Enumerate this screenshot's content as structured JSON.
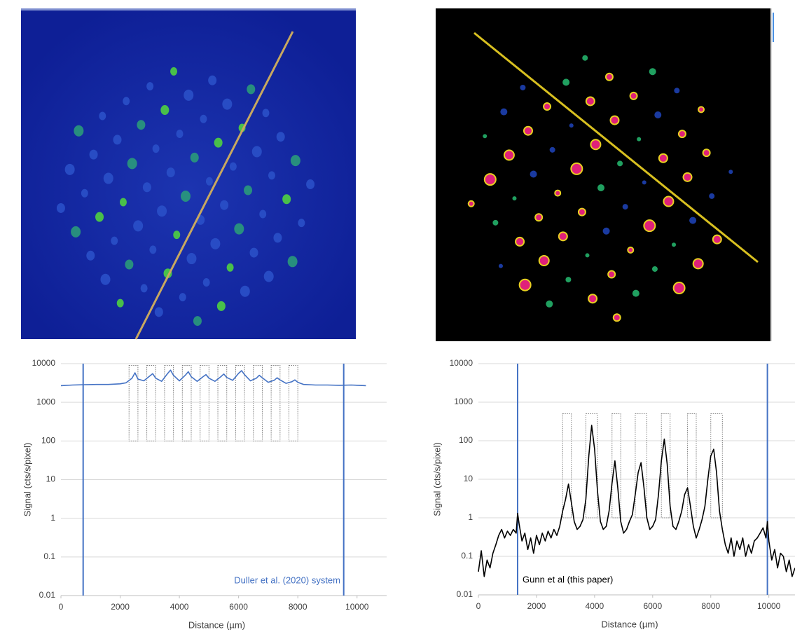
{
  "chart_data": [
    {
      "type": "line",
      "log_y": true,
      "grid": true,
      "xlabel": "Distance (µm)",
      "ylabel": "Signal (cts/s/pixel)",
      "annotation": "Duller et al. (2020) system",
      "annotation_color": "#4472c4",
      "xlim": [
        0,
        11000
      ],
      "ylim": [
        0.01,
        10000
      ],
      "xticks": [
        0,
        2000,
        4000,
        6000,
        8000,
        10000
      ],
      "yticks": [
        10000,
        1000,
        100,
        10,
        1,
        0.1,
        0.01
      ],
      "x": [
        0,
        400,
        800,
        1200,
        1600,
        2000,
        2200,
        2400,
        2500,
        2600,
        2800,
        3000,
        3100,
        3200,
        3400,
        3600,
        3700,
        3800,
        4000,
        4200,
        4300,
        4400,
        4600,
        4800,
        4900,
        5000,
        5200,
        5400,
        5500,
        5600,
        5800,
        6000,
        6100,
        6200,
        6400,
        6600,
        6700,
        6800,
        7000,
        7200,
        7300,
        7400,
        7600,
        7800,
        7900,
        8000,
        8200,
        8600,
        9000,
        9400,
        9800,
        10300
      ],
      "series": [
        {
          "color": "#4472c4",
          "values": [
            2700,
            2800,
            2850,
            2900,
            2900,
            3000,
            3200,
            4200,
            5800,
            4000,
            3600,
            4800,
            5500,
            4200,
            3500,
            5500,
            6800,
            5000,
            3600,
            5000,
            6200,
            4600,
            3500,
            4600,
            5200,
            4200,
            3500,
            4600,
            5400,
            4400,
            3700,
            5600,
            6600,
            5200,
            3600,
            4200,
            5000,
            4300,
            3300,
            3700,
            4300,
            3800,
            3100,
            3400,
            3800,
            3300,
            2900,
            2800,
            2800,
            2750,
            2800,
            2700
          ]
        }
      ],
      "vlines": {
        "color": "#4472c4",
        "x": [
          750,
          9550
        ]
      },
      "boxes": [
        {
          "x0": 2300,
          "x1": 2600,
          "y0": 100,
          "y1": 9000
        },
        {
          "x0": 2900,
          "x1": 3200,
          "y0": 100,
          "y1": 9000
        },
        {
          "x0": 3500,
          "x1": 3800,
          "y0": 100,
          "y1": 9000
        },
        {
          "x0": 4100,
          "x1": 4400,
          "y0": 100,
          "y1": 9000
        },
        {
          "x0": 4700,
          "x1": 5000,
          "y0": 100,
          "y1": 9000
        },
        {
          "x0": 5300,
          "x1": 5600,
          "y0": 100,
          "y1": 9000
        },
        {
          "x0": 5900,
          "x1": 6200,
          "y0": 100,
          "y1": 9000
        },
        {
          "x0": 6500,
          "x1": 6800,
          "y0": 100,
          "y1": 9000
        },
        {
          "x0": 7100,
          "x1": 7400,
          "y0": 100,
          "y1": 9000
        },
        {
          "x0": 7700,
          "x1": 8000,
          "y0": 100,
          "y1": 9000
        }
      ]
    },
    {
      "type": "line",
      "log_y": true,
      "grid": true,
      "xlabel": "Distance (µm)",
      "ylabel": "Signal (cts/s/pixel)",
      "annotation": "Gunn et al (this paper)",
      "annotation_color": "#000000",
      "xlim": [
        0,
        10900
      ],
      "ylim": [
        0.01,
        10000
      ],
      "xticks": [
        0,
        2000,
        4000,
        6000,
        8000,
        10000
      ],
      "yticks": [
        10000,
        1000,
        100,
        10,
        1,
        0.1,
        0.01
      ],
      "x": [
        0,
        100,
        200,
        300,
        400,
        500,
        600,
        700,
        800,
        900,
        1000,
        1100,
        1200,
        1300,
        1350,
        1400,
        1500,
        1600,
        1700,
        1800,
        1900,
        2000,
        2100,
        2200,
        2300,
        2400,
        2500,
        2600,
        2700,
        2800,
        2900,
        3000,
        3100,
        3200,
        3300,
        3400,
        3500,
        3600,
        3700,
        3800,
        3900,
        4000,
        4100,
        4200,
        4300,
        4400,
        4500,
        4600,
        4700,
        4800,
        4900,
        5000,
        5100,
        5200,
        5300,
        5400,
        5500,
        5600,
        5700,
        5800,
        5900,
        6000,
        6100,
        6200,
        6300,
        6400,
        6500,
        6600,
        6700,
        6800,
        6900,
        7000,
        7100,
        7200,
        7300,
        7400,
        7500,
        7600,
        7700,
        7800,
        7900,
        8000,
        8100,
        8200,
        8300,
        8400,
        8500,
        8600,
        8700,
        8800,
        8900,
        9000,
        9100,
        9200,
        9300,
        9400,
        9500,
        9600,
        9700,
        9800,
        9900,
        9950,
        10000,
        10100,
        10200,
        10300,
        10400,
        10500,
        10600,
        10700,
        10800,
        10900
      ],
      "series": [
        {
          "color": "#000000",
          "values": [
            0.04,
            0.14,
            0.03,
            0.08,
            0.05,
            0.12,
            0.2,
            0.35,
            0.5,
            0.3,
            0.45,
            0.35,
            0.5,
            0.4,
            1.3,
            0.7,
            0.25,
            0.4,
            0.15,
            0.3,
            0.12,
            0.35,
            0.2,
            0.4,
            0.25,
            0.45,
            0.3,
            0.5,
            0.35,
            0.6,
            1.5,
            3,
            7.5,
            2.5,
            0.8,
            0.5,
            0.6,
            0.9,
            3,
            40,
            250,
            60,
            5,
            0.8,
            0.5,
            0.6,
            1.5,
            8,
            30,
            6,
            0.8,
            0.4,
            0.5,
            0.8,
            1.2,
            4,
            15,
            27,
            6,
            1,
            0.5,
            0.6,
            0.9,
            4,
            30,
            110,
            25,
            2,
            0.6,
            0.5,
            0.8,
            1.5,
            4,
            6,
            2,
            0.6,
            0.3,
            0.5,
            0.9,
            2,
            10,
            40,
            60,
            15,
            1.5,
            0.5,
            0.2,
            0.12,
            0.3,
            0.1,
            0.25,
            0.15,
            0.3,
            0.1,
            0.2,
            0.12,
            0.25,
            0.3,
            0.4,
            0.55,
            0.3,
            0.8,
            0.25,
            0.08,
            0.15,
            0.05,
            0.12,
            0.1,
            0.04,
            0.08,
            0.03,
            0.05
          ]
        }
      ],
      "vlines": {
        "color": "#4472c4",
        "x": [
          1350,
          9950
        ]
      },
      "boxes": [
        {
          "x0": 2900,
          "x1": 3200,
          "y0": 1,
          "y1": 500
        },
        {
          "x0": 3700,
          "x1": 4100,
          "y0": 1,
          "y1": 500
        },
        {
          "x0": 4600,
          "x1": 4900,
          "y0": 1,
          "y1": 500
        },
        {
          "x0": 5400,
          "x1": 5800,
          "y0": 1,
          "y1": 500
        },
        {
          "x0": 6300,
          "x1": 6600,
          "y0": 1,
          "y1": 500
        },
        {
          "x0": 7200,
          "x1": 7500,
          "y0": 1,
          "y1": 500
        },
        {
          "x0": 8000,
          "x1": 8400,
          "y0": 1,
          "y1": 500
        }
      ]
    }
  ]
}
